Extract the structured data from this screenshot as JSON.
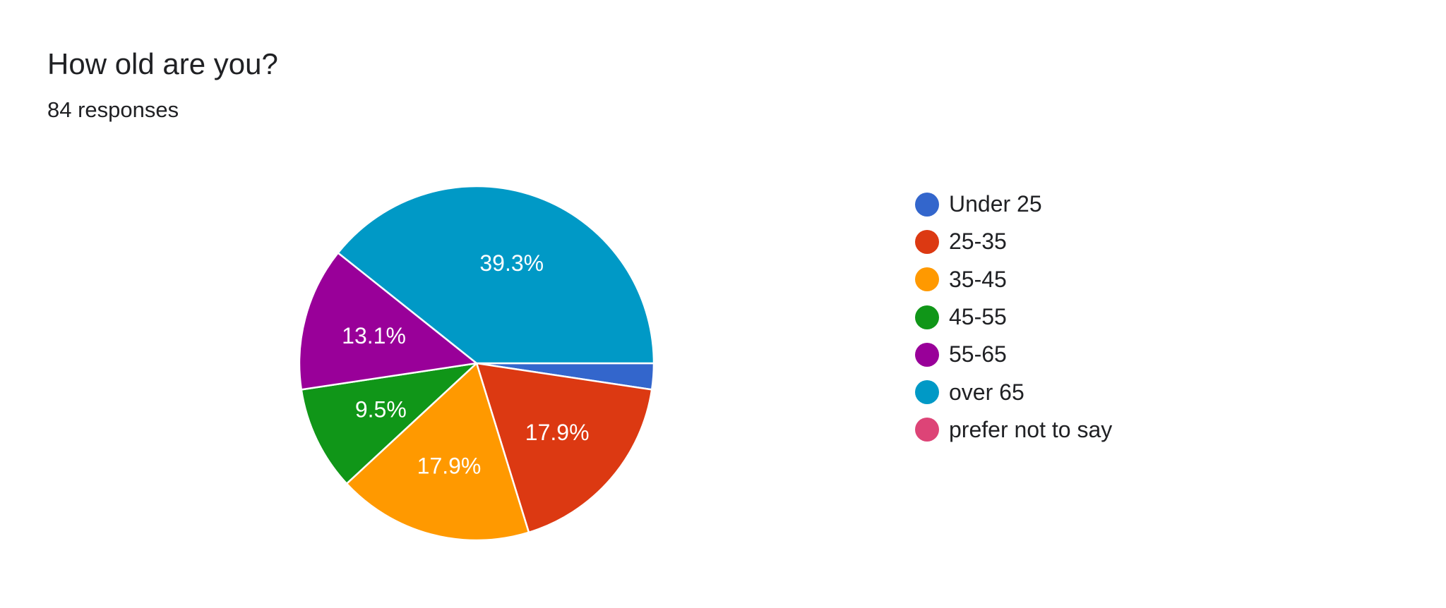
{
  "header": {
    "title": "How old are you?",
    "responses": "84 responses"
  },
  "chart_data": {
    "type": "pie",
    "title": "How old are you?",
    "total_responses": 84,
    "categories": [
      "Under 25",
      "25-35",
      "35-45",
      "45-55",
      "55-65",
      "over 65",
      "prefer not to say"
    ],
    "values": [
      2,
      15,
      15,
      8,
      11,
      33,
      0
    ],
    "percent_labels": [
      "",
      "17.9%",
      "17.9%",
      "9.5%",
      "13.1%",
      "39.3%",
      ""
    ],
    "colors": [
      "#3366cc",
      "#dc3912",
      "#ff9900",
      "#109618",
      "#990099",
      "#0099c6",
      "#dd4477"
    ],
    "start_direction": "3 o'clock, clockwise",
    "legend_position": "right"
  }
}
